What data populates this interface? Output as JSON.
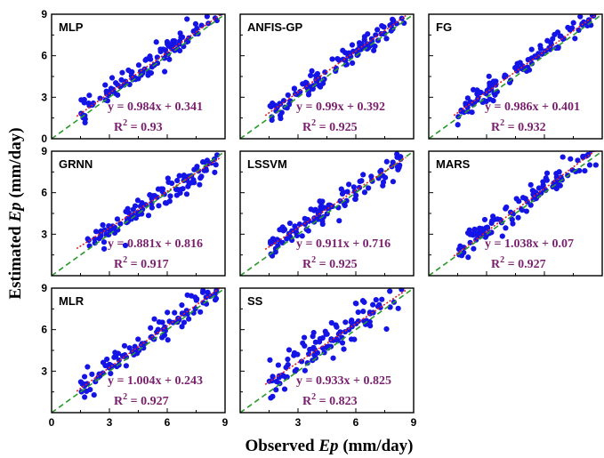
{
  "figure": {
    "xlabel_main": "Observed ",
    "xlabel_var": "Ep",
    "xlabel_unit": " (mm/day)",
    "ylabel_main": "Estimated ",
    "ylabel_var": "Ep",
    "ylabel_unit": " (mm/day)",
    "r2_prefix": "R",
    "r2_exp": "2",
    "r2_eq": " = ",
    "colors": {
      "points": "#1414e6",
      "fit": "#e02020",
      "identity": "#2a9a2a",
      "equation": "#7a1f6e"
    }
  },
  "chart_data": [
    {
      "type": "scatter",
      "panel": "MLP",
      "equation": "y = 0.984x + 0.341",
      "r2": "0.93",
      "slope": 0.984,
      "intercept": 0.341,
      "xlim": [
        0,
        9
      ],
      "ylim": [
        0,
        9
      ],
      "xticks": [],
      "yticks": [
        "0",
        "3",
        "6",
        "9"
      ],
      "seed": 11,
      "noise": 0.45,
      "xrange": [
        1.5,
        8.8
      ]
    },
    {
      "type": "scatter",
      "panel": "ANFIS-GP",
      "equation": "y = 0.99x + 0.392",
      "r2": "0.925",
      "slope": 0.99,
      "intercept": 0.392,
      "xlim": [
        0,
        9
      ],
      "ylim": [
        0,
        9
      ],
      "xticks": [],
      "yticks": [],
      "seed": 23,
      "noise": 0.45,
      "xrange": [
        1.5,
        8.6
      ]
    },
    {
      "type": "scatter",
      "panel": "FG",
      "equation": "y = 0.986x + 0.401",
      "r2": "0.932",
      "slope": 0.986,
      "intercept": 0.401,
      "xlim": [
        0,
        9
      ],
      "ylim": [
        0,
        9
      ],
      "xticks": [],
      "yticks": [],
      "seed": 37,
      "noise": 0.45,
      "xrange": [
        1.5,
        8.8
      ]
    },
    {
      "type": "scatter",
      "panel": "GRNN",
      "equation": "y = 0.881x + 0.816",
      "r2": "0.917",
      "slope": 0.881,
      "intercept": 0.816,
      "xlim": [
        0,
        9
      ],
      "ylim": [
        0,
        9
      ],
      "xticks": [],
      "yticks": [
        "3",
        "6",
        "9"
      ],
      "seed": 41,
      "noise": 0.45,
      "xrange": [
        1.5,
        8.6
      ]
    },
    {
      "type": "scatter",
      "panel": "LSSVM",
      "equation": "y = 0.911x + 0.716",
      "r2": "0.925",
      "slope": 0.911,
      "intercept": 0.716,
      "xlim": [
        0,
        9
      ],
      "ylim": [
        0,
        9
      ],
      "xticks": [],
      "yticks": [],
      "seed": 53,
      "noise": 0.45,
      "xrange": [
        1.5,
        8.4
      ]
    },
    {
      "type": "scatter",
      "panel": "MARS",
      "equation": "y = 1.038x + 0.07",
      "r2": "0.927",
      "slope": 1.038,
      "intercept": 0.07,
      "xlim": [
        0,
        9
      ],
      "ylim": [
        0,
        9
      ],
      "xticks": [],
      "yticks": [],
      "seed": 67,
      "noise": 0.45,
      "xrange": [
        1.5,
        8.8
      ]
    },
    {
      "type": "scatter",
      "panel": "MLR",
      "equation": "y = 1.004x + 0.243",
      "r2": "0.927",
      "slope": 1.004,
      "intercept": 0.243,
      "xlim": [
        0,
        9
      ],
      "ylim": [
        0,
        9
      ],
      "xticks": [
        "0",
        "3",
        "6",
        "9"
      ],
      "yticks": [
        "3",
        "6",
        "9"
      ],
      "seed": 71,
      "noise": 0.45,
      "xrange": [
        1.5,
        8.6
      ]
    },
    {
      "type": "scatter",
      "panel": "SS",
      "equation": "y = 0.933x + 0.825",
      "r2": "0.823",
      "slope": 0.933,
      "intercept": 0.825,
      "xlim": [
        0,
        9
      ],
      "ylim": [
        0,
        9
      ],
      "xticks": [
        "3",
        "6",
        "9"
      ],
      "yticks": [],
      "seed": 83,
      "noise": 0.7,
      "xrange": [
        1.5,
        8.4
      ]
    }
  ]
}
